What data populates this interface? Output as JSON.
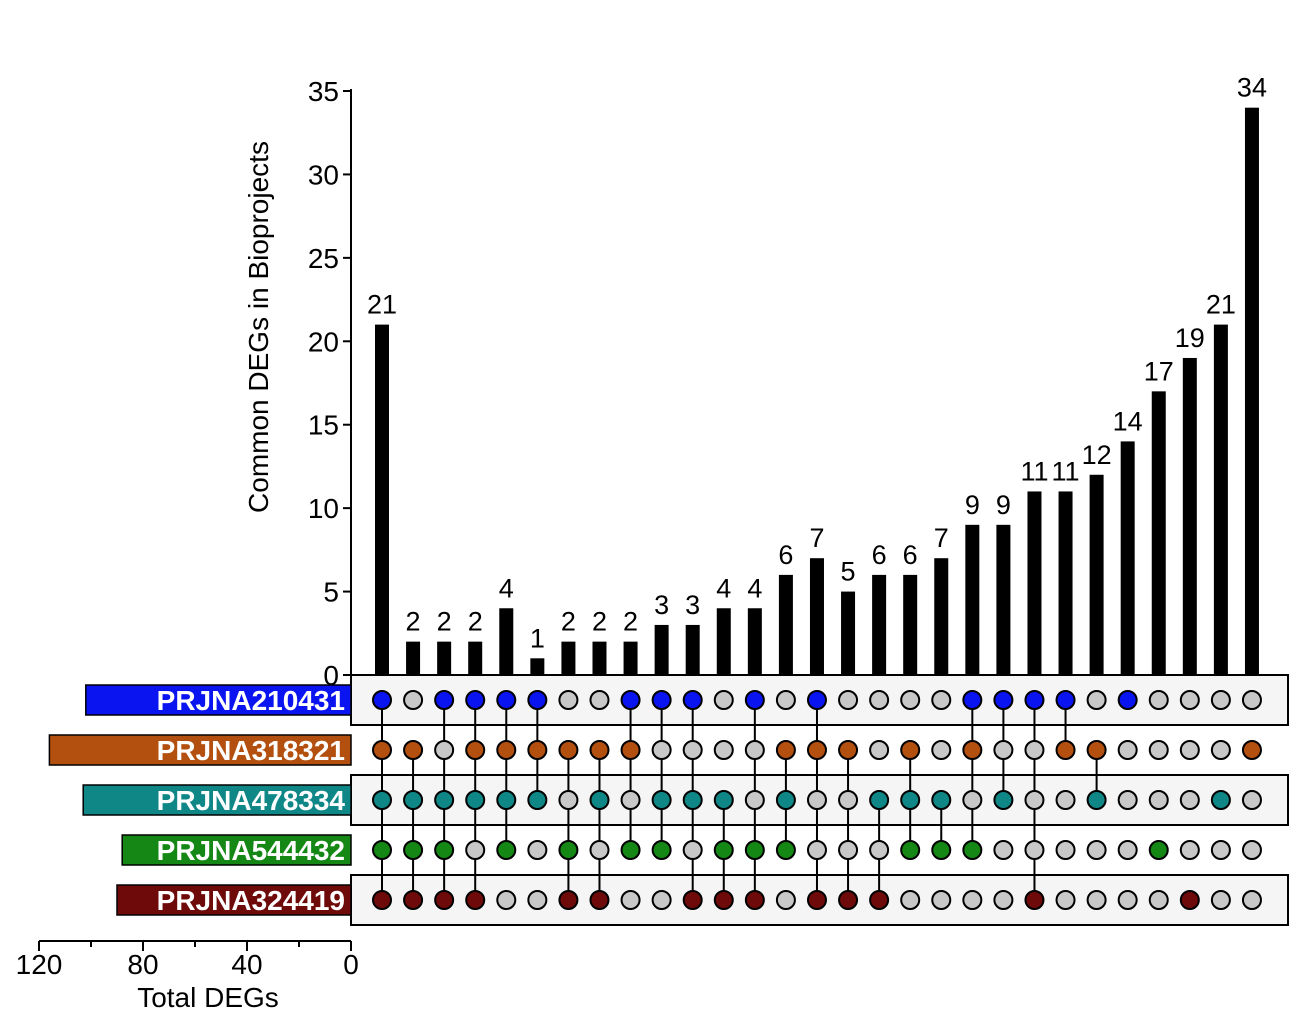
{
  "chart_data": {
    "type": "bar",
    "title": "",
    "ylabel": "Common DEGs in Bioprojects",
    "ylim": [
      0,
      35
    ],
    "y_ticks": [
      "0",
      "5",
      "10",
      "15",
      "20",
      "25",
      "30",
      "35"
    ],
    "values": [
      21,
      2,
      2,
      2,
      4,
      1,
      2,
      2,
      2,
      3,
      3,
      4,
      4,
      6,
      7,
      5,
      6,
      6,
      7,
      9,
      9,
      11,
      11,
      12,
      14,
      17,
      19,
      21,
      34
    ],
    "value_labels": [
      "21",
      "2",
      "2",
      "2",
      "4",
      "1",
      "2",
      "2",
      "2",
      "3",
      "3",
      "4",
      "4",
      "6",
      "7",
      "5",
      "6",
      "6",
      "7",
      "9",
      "9",
      "11",
      "11",
      "12",
      "14",
      "17",
      "19",
      "21",
      "34"
    ],
    "sets": [
      {
        "name": "PRJNA210431",
        "color": "#0a14f0",
        "total": 102
      },
      {
        "name": "PRJNA318321",
        "color": "#b4500f",
        "total": 116
      },
      {
        "name": "PRJNA478334",
        "color": "#0f8787",
        "total": 103
      },
      {
        "name": "PRJNA544432",
        "color": "#148714",
        "total": 88
      },
      {
        "name": "PRJNA324419",
        "color": "#6e0a0a",
        "total": 90
      }
    ],
    "membership": [
      [
        1,
        1,
        1,
        1,
        1
      ],
      [
        0,
        1,
        1,
        1,
        1
      ],
      [
        1,
        0,
        1,
        1,
        1
      ],
      [
        1,
        1,
        1,
        0,
        1
      ],
      [
        1,
        1,
        1,
        1,
        0
      ],
      [
        1,
        1,
        1,
        0,
        0
      ],
      [
        0,
        1,
        0,
        1,
        1
      ],
      [
        0,
        1,
        1,
        0,
        1
      ],
      [
        1,
        1,
        0,
        1,
        0
      ],
      [
        1,
        0,
        1,
        1,
        0
      ],
      [
        1,
        0,
        1,
        0,
        1
      ],
      [
        0,
        0,
        1,
        1,
        1
      ],
      [
        1,
        0,
        0,
        1,
        1
      ],
      [
        0,
        1,
        1,
        1,
        0
      ],
      [
        1,
        1,
        0,
        0,
        1
      ],
      [
        0,
        1,
        0,
        0,
        1
      ],
      [
        0,
        0,
        1,
        0,
        1
      ],
      [
        0,
        1,
        1,
        1,
        0
      ],
      [
        0,
        0,
        1,
        1,
        0
      ],
      [
        1,
        1,
        0,
        1,
        0
      ],
      [
        1,
        0,
        1,
        0,
        0
      ],
      [
        1,
        0,
        0,
        0,
        1
      ],
      [
        1,
        1,
        0,
        0,
        0
      ],
      [
        0,
        1,
        1,
        0,
        0
      ],
      [
        1,
        0,
        0,
        0,
        0
      ],
      [
        0,
        0,
        0,
        1,
        0
      ],
      [
        0,
        0,
        0,
        0,
        1
      ],
      [
        0,
        0,
        1,
        0,
        0
      ],
      [
        0,
        1,
        0,
        0,
        0
      ]
    ],
    "set_size_axis": {
      "label": "Total DEGs",
      "ticks": [
        "120",
        "80",
        "40",
        "0"
      ],
      "xlim": [
        120,
        0
      ]
    },
    "colors": {
      "bar": "#000000",
      "dot_inactive": "#c8c8c8",
      "row_band": "#f5f5f5"
    }
  }
}
